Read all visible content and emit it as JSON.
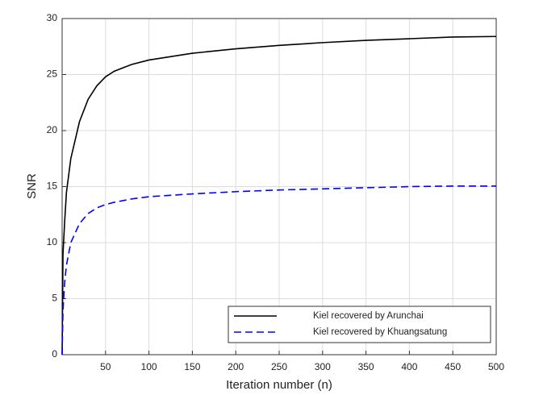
{
  "chart_data": {
    "type": "line",
    "xlabel": "Iteration number (n)",
    "ylabel": "SNR",
    "x": [
      0,
      1,
      3,
      5,
      10,
      20,
      30,
      40,
      50,
      60,
      80,
      100,
      150,
      200,
      250,
      300,
      350,
      400,
      450,
      500
    ],
    "series": [
      {
        "name": "Kiel recovered by Arunchai",
        "color": "#000000",
        "dash": "solid",
        "values": [
          0,
          9,
          12,
          14.5,
          17.5,
          20.8,
          22.8,
          24,
          24.8,
          25.3,
          25.9,
          26.3,
          26.9,
          27.3,
          27.6,
          27.85,
          28.05,
          28.2,
          28.35,
          28.4
        ]
      },
      {
        "name": "Kiel recovered by Khuangsatung",
        "color": "#0000ff",
        "dash": "dashed",
        "values": [
          0,
          4,
          6.5,
          8,
          10,
          11.7,
          12.6,
          13.1,
          13.4,
          13.6,
          13.9,
          14.1,
          14.35,
          14.55,
          14.7,
          14.8,
          14.9,
          15,
          15.05,
          15.05
        ]
      }
    ],
    "xlim": [
      0,
      500
    ],
    "xticks": [
      50,
      100,
      150,
      200,
      250,
      300,
      350,
      400,
      450,
      500
    ],
    "ylim": [
      0,
      30
    ],
    "yticks": [
      0,
      5,
      10,
      15,
      20,
      25,
      30
    ],
    "grid": true,
    "legend": "lower right"
  }
}
